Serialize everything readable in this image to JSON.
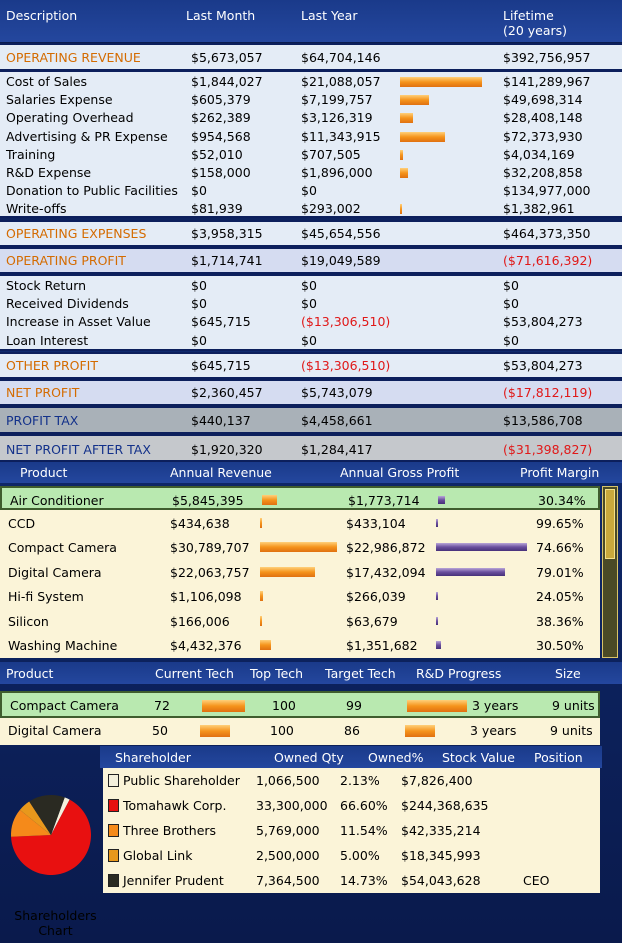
{
  "financials": {
    "headers": {
      "description": "Description",
      "last_month": "Last Month",
      "last_year": "Last Year",
      "lifetime": "Lifetime",
      "lifetime_sub": "(20 years)"
    },
    "operating_revenue": {
      "label": "OPERATING REVENUE",
      "last_month": "$5,673,057",
      "last_year": "$64,704,146",
      "lifetime": "$392,756,957"
    },
    "expenses": [
      {
        "label": "Cost of Sales",
        "last_month": "$1,844,027",
        "last_year": "$21,088,057",
        "lifetime": "$141,289,967",
        "share": 0.95
      },
      {
        "label": "Salaries Expense",
        "last_month": "$605,379",
        "last_year": "$7,199,757",
        "lifetime": "$49,698,314",
        "share": 0.34
      },
      {
        "label": "Operating Overhead",
        "last_month": "$262,389",
        "last_year": "$3,126,319",
        "lifetime": "$28,408,148",
        "share": 0.15
      },
      {
        "label": "Advertising & PR Expense",
        "last_month": "$954,568",
        "last_year": "$11,343,915",
        "lifetime": "$72,373,930",
        "share": 0.52
      },
      {
        "label": "Training",
        "last_month": "$52,010",
        "last_year": "$707,505",
        "lifetime": "$4,034,169",
        "share": 0.03
      },
      {
        "label": "R&D Expense",
        "last_month": "$158,000",
        "last_year": "$1,896,000",
        "lifetime": "$32,208,858",
        "share": 0.09
      },
      {
        "label": "Donation to Public Facilities",
        "last_month": "$0",
        "last_year": "$0",
        "lifetime": "$134,977,000",
        "share": 0
      },
      {
        "label": "Write-offs",
        "last_month": "$81,939",
        "last_year": "$293,002",
        "lifetime": "$1,382,961",
        "share": 0.015
      }
    ],
    "operating_expenses": {
      "label": "OPERATING EXPENSES",
      "last_month": "$3,958,315",
      "last_year": "$45,654,556",
      "lifetime": "$464,373,350"
    },
    "operating_profit": {
      "label": "OPERATING PROFIT",
      "last_month": "$1,714,741",
      "last_year": "$19,049,589",
      "lifetime": "($71,616,392)"
    },
    "other_items": [
      {
        "label": "Stock Return",
        "last_month": "$0",
        "last_year": "$0",
        "lifetime": "$0"
      },
      {
        "label": "Received Dividends",
        "last_month": "$0",
        "last_year": "$0",
        "lifetime": "$0"
      },
      {
        "label": "Increase in Asset Value",
        "last_month": "$645,715",
        "last_year": "($13,306,510)",
        "lifetime": "$53,804,273"
      },
      {
        "label": "Loan Interest",
        "last_month": "$0",
        "last_year": "$0",
        "lifetime": "$0"
      }
    ],
    "other_profit": {
      "label": "OTHER PROFIT",
      "last_month": "$645,715",
      "last_year": "($13,306,510)",
      "lifetime": "$53,804,273"
    },
    "net_profit": {
      "label": "NET PROFIT",
      "last_month": "$2,360,457",
      "last_year": "$5,743,079",
      "lifetime": "($17,812,119)"
    },
    "profit_tax": {
      "label": "PROFIT TAX",
      "last_month": "$440,137",
      "last_year": "$4,458,661",
      "lifetime": "$13,586,708"
    },
    "net_after_tax": {
      "label": "NET PROFIT AFTER TAX",
      "last_month": "$1,920,320",
      "last_year": "$1,284,417",
      "lifetime": "($31,398,827)"
    }
  },
  "products": {
    "headers": {
      "product": "Product",
      "revenue": "Annual Revenue",
      "gross": "Annual Gross Profit",
      "margin": "Profit Margin"
    },
    "rows": [
      {
        "name": "Air Conditioner",
        "revenue": "$5,845,395",
        "gross": "$1,773,714",
        "margin": "30.34%",
        "rev_share": 0.19,
        "gross_share": 0.08
      },
      {
        "name": "CCD",
        "revenue": "$434,638",
        "gross": "$433,104",
        "margin": "99.65%",
        "rev_share": 0.015,
        "gross_share": 0.02
      },
      {
        "name": "Compact Camera",
        "revenue": "$30,789,707",
        "gross": "$22,986,872",
        "margin": "74.66%",
        "rev_share": 1.0,
        "gross_share": 1.0
      },
      {
        "name": "Digital Camera",
        "revenue": "$22,063,757",
        "gross": "$17,432,094",
        "margin": "79.01%",
        "rev_share": 0.72,
        "gross_share": 0.76
      },
      {
        "name": "Hi-fi System",
        "revenue": "$1,106,098",
        "gross": "$266,039",
        "margin": "24.05%",
        "rev_share": 0.04,
        "gross_share": 0.015
      },
      {
        "name": "Silicon",
        "revenue": "$166,006",
        "gross": "$63,679",
        "margin": "38.36%",
        "rev_share": 0.01,
        "gross_share": 0.01
      },
      {
        "name": "Washing Machine",
        "revenue": "$4,432,376",
        "gross": "$1,351,682",
        "margin": "30.50%",
        "rev_share": 0.14,
        "gross_share": 0.06
      }
    ]
  },
  "tech": {
    "headers": {
      "product": "Product",
      "current": "Current Tech",
      "top": "Top Tech",
      "target": "Target Tech",
      "progress": "R&D Progress",
      "size": "Size"
    },
    "rows": [
      {
        "name": "Compact Camera",
        "current": "72",
        "top": "100",
        "target": "99",
        "time": "3 years",
        "size": "9 units",
        "current_level": 0.72,
        "progress": 1.0
      },
      {
        "name": "Digital Camera",
        "current": "50",
        "top": "100",
        "target": "86",
        "time": "3 years",
        "size": "9 units",
        "current_level": 0.5,
        "progress": 0.5
      }
    ]
  },
  "shareholders": {
    "headers": {
      "shareholder": "Shareholder",
      "qty": "Owned Qty",
      "pct": "Owned%",
      "value": "Stock Value",
      "position": "Position"
    },
    "chart_label": "Shareholders Chart",
    "rows": [
      {
        "name": "Public Shareholder",
        "qty": "1,066,500",
        "pct": "2.13%",
        "value": "$7,826,400",
        "position": "",
        "color": "#f4f0dc",
        "fraction": 0.0213
      },
      {
        "name": "Tomahawk Corp.",
        "qty": "33,300,000",
        "pct": "66.60%",
        "value": "$244,368,635",
        "position": "",
        "color": "#e81010",
        "fraction": 0.666
      },
      {
        "name": "Three Brothers",
        "qty": "5,769,000",
        "pct": "11.54%",
        "value": "$42,335,214",
        "position": "",
        "color": "#f58a1a",
        "fraction": 0.1154
      },
      {
        "name": "Global Link",
        "qty": "2,500,000",
        "pct": "5.00%",
        "value": "$18,345,993",
        "position": "",
        "color": "#e8981c",
        "fraction": 0.05
      },
      {
        "name": "Jennifer Prudent",
        "qty": "7,364,500",
        "pct": "14.73%",
        "value": "$54,043,628",
        "position": "CEO",
        "color": "#2a2a22",
        "fraction": 0.1473
      }
    ]
  }
}
